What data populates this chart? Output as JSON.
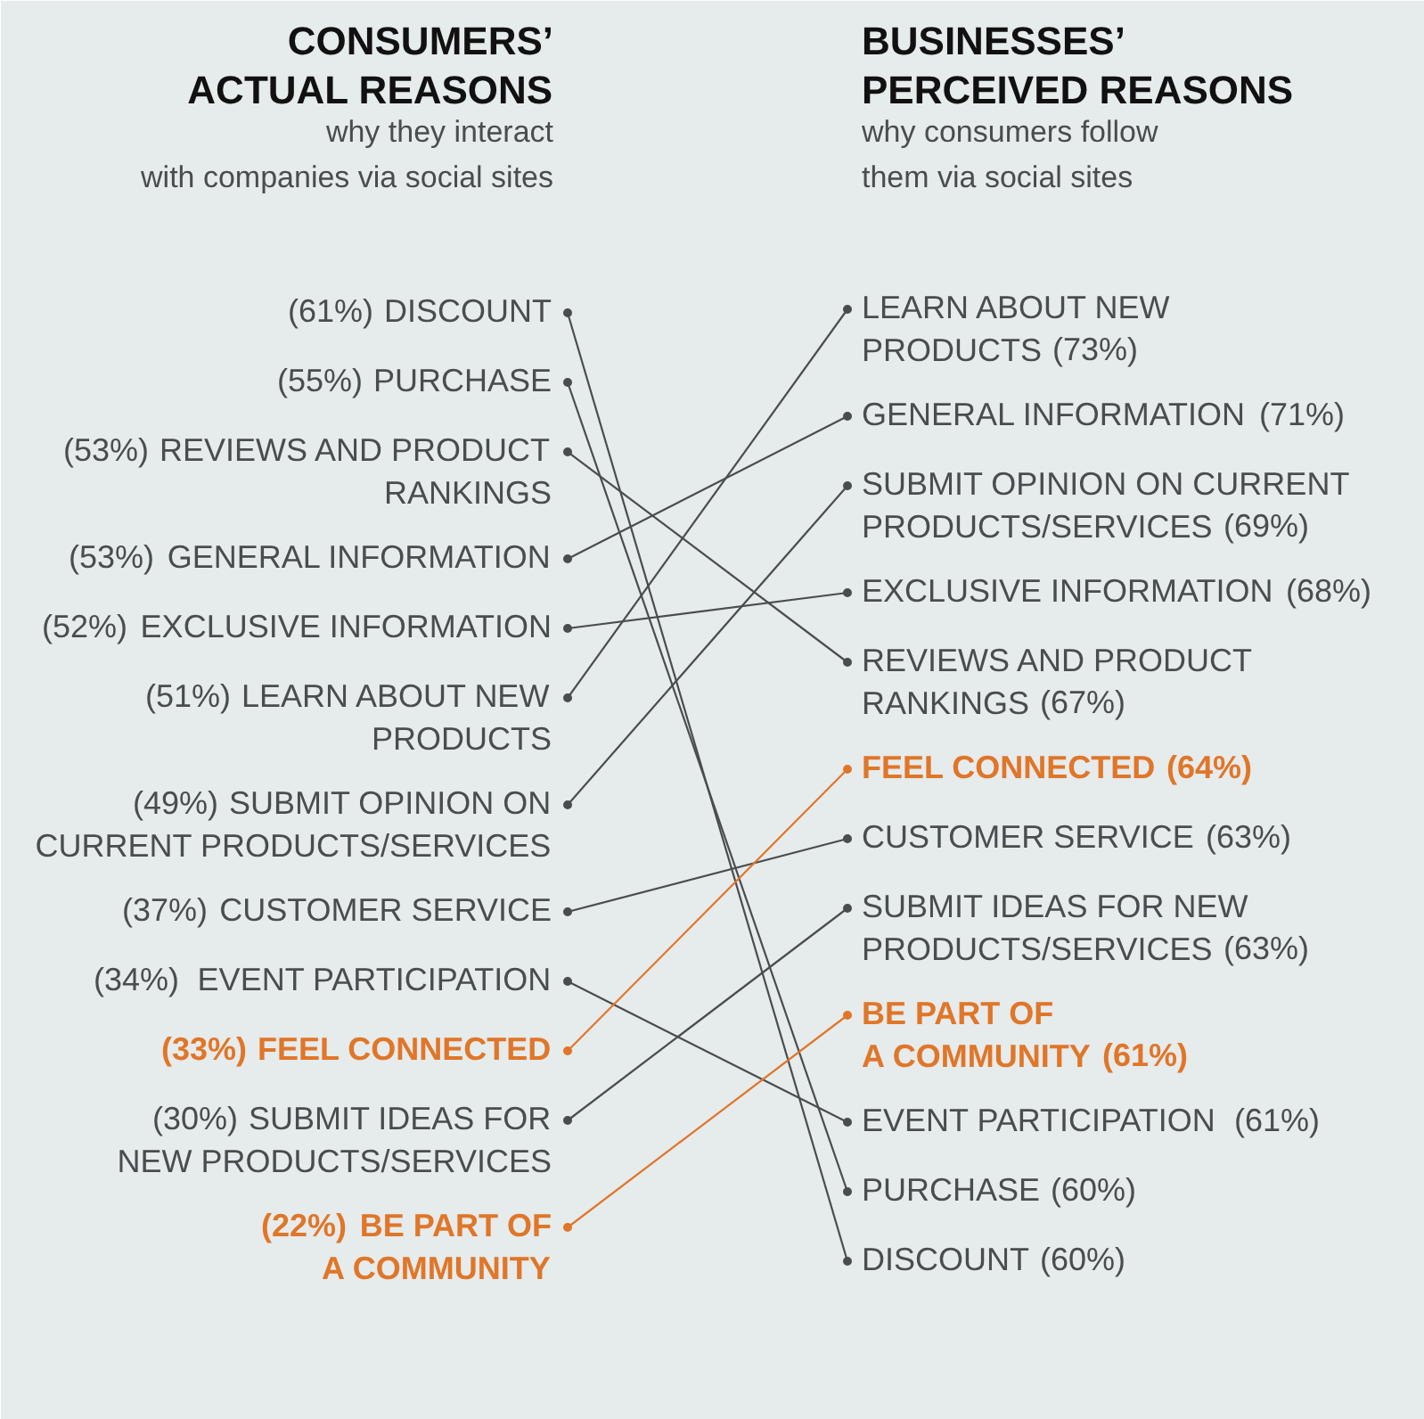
{
  "chart_data": [
    {
      "type": "other",
      "title": "CONSUMERS’\nACTUAL REASONS",
      "subtitle": "why they interact\nwith companies via social sites",
      "categories": [
        "DISCOUNT",
        "PURCHASE",
        "REVIEWS AND PRODUCT\nRANKINGS",
        "GENERAL INFORMATION",
        "EXCLUSIVE INFORMATION",
        "LEARN ABOUT NEW\nPRODUCTS",
        "SUBMIT OPINION ON\nCURRENT PRODUCTS/SERVICES",
        "CUSTOMER SERVICE",
        "EVENT PARTICIPATION",
        "FEEL CONNECTED",
        "SUBMIT IDEAS FOR\nNEW PRODUCTS/SERVICES",
        "BE PART OF\nA COMMUNITY"
      ],
      "values": [
        61,
        55,
        53,
        53,
        52,
        51,
        49,
        37,
        34,
        33,
        30,
        22
      ],
      "value_labels": [
        "(61%)",
        "(55%)",
        "(53%)",
        "(53%)",
        "(52%)",
        "(51%)",
        "(49%)",
        "(37%)",
        "(34%)",
        "(33%)",
        "(30%)",
        "(22%)"
      ],
      "colors": [
        "#4a4d50",
        "#4a4d50",
        "#4a4d50",
        "#4a4d50",
        "#4a4d50",
        "#4a4d50",
        "#4a4d50",
        "#4a4d50",
        "#4a4d50",
        "#e07628",
        "#4a4d50",
        "#e07628"
      ]
    },
    {
      "type": "other",
      "title": "BUSINESSES’\nPERCEIVED REASONS",
      "subtitle": "why consumers follow\nthem via social sites",
      "categories": [
        "LEARN ABOUT NEW\nPRODUCTS",
        "GENERAL INFORMATION",
        "SUBMIT OPINION ON CURRENT\nPRODUCTS/SERVICES",
        "EXCLUSIVE INFORMATION",
        "REVIEWS AND PRODUCT\nRANKINGS",
        "FEEL CONNECTED",
        "CUSTOMER SERVICE",
        "SUBMIT IDEAS FOR NEW\nPRODUCTS/SERVICES",
        "BE PART OF\nA COMMUNITY",
        "EVENT PARTICIPATION",
        "PURCHASE",
        "DISCOUNT"
      ],
      "values": [
        73,
        71,
        69,
        68,
        67,
        64,
        63,
        63,
        61,
        61,
        60,
        60
      ],
      "value_labels": [
        "(73%)",
        "(71%)",
        "(69%)",
        "(68%)",
        "(67%)",
        "(64%)",
        "(63%)",
        "(63%)",
        "(61%)",
        "(61%)",
        "(60%)",
        "(60%)"
      ],
      "colors": [
        "#4a4d50",
        "#4a4d50",
        "#4a4d50",
        "#4a4d50",
        "#4a4d50",
        "#e07628",
        "#4a4d50",
        "#4a4d50",
        "#e07628",
        "#4a4d50",
        "#4a4d50",
        "#4a4d50"
      ]
    }
  ]
}
